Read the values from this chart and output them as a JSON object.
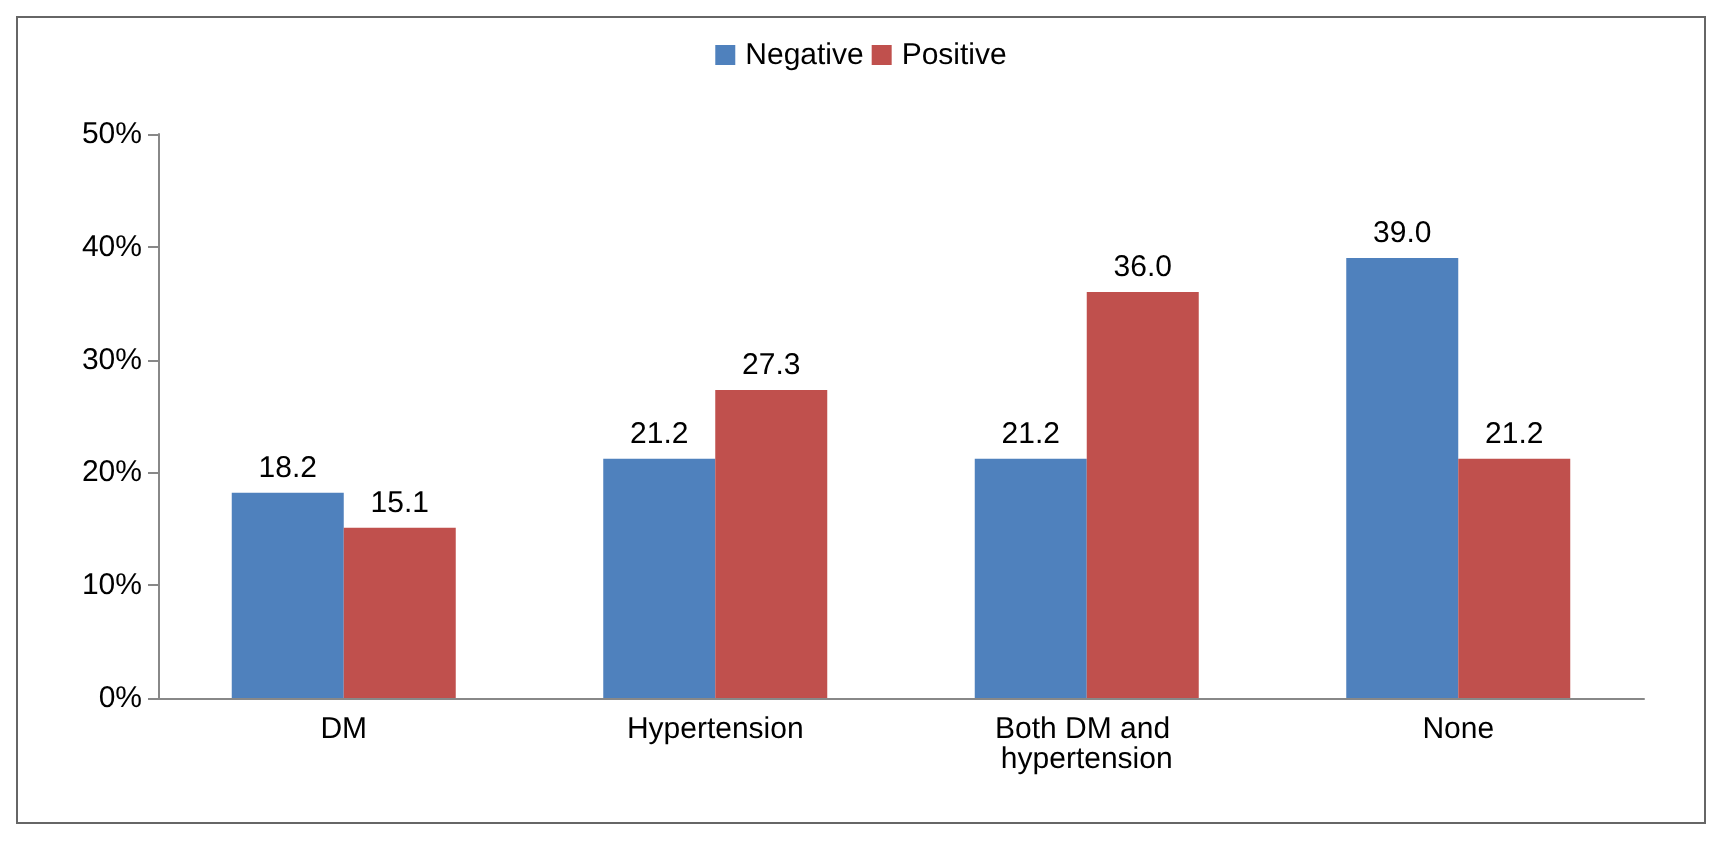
{
  "chart_data": {
    "type": "bar",
    "categories": [
      "DM",
      "Hypertension",
      "Both DM and hypertension",
      "None"
    ],
    "series": [
      {
        "name": "Negative",
        "color": "#4f81bd",
        "values": [
          18.2,
          21.2,
          21.2,
          39.0
        ],
        "value_labels": [
          "18.2",
          "21.2",
          "21.2",
          "39.0"
        ]
      },
      {
        "name": "Positive",
        "color": "#c0504d",
        "values": [
          15.1,
          27.3,
          36.0,
          21.2
        ],
        "value_labels": [
          "15.1",
          "27.3",
          "36.0",
          "21.2"
        ]
      }
    ],
    "ylim": [
      0,
      50
    ],
    "yticks": [
      {
        "value": 0,
        "label": "0%"
      },
      {
        "value": 10,
        "label": "10%"
      },
      {
        "value": 20,
        "label": "20%"
      },
      {
        "value": 30,
        "label": "30%"
      },
      {
        "value": 40,
        "label": "40%"
      },
      {
        "value": 50,
        "label": "50%"
      }
    ],
    "grid": false,
    "legend": "top"
  }
}
